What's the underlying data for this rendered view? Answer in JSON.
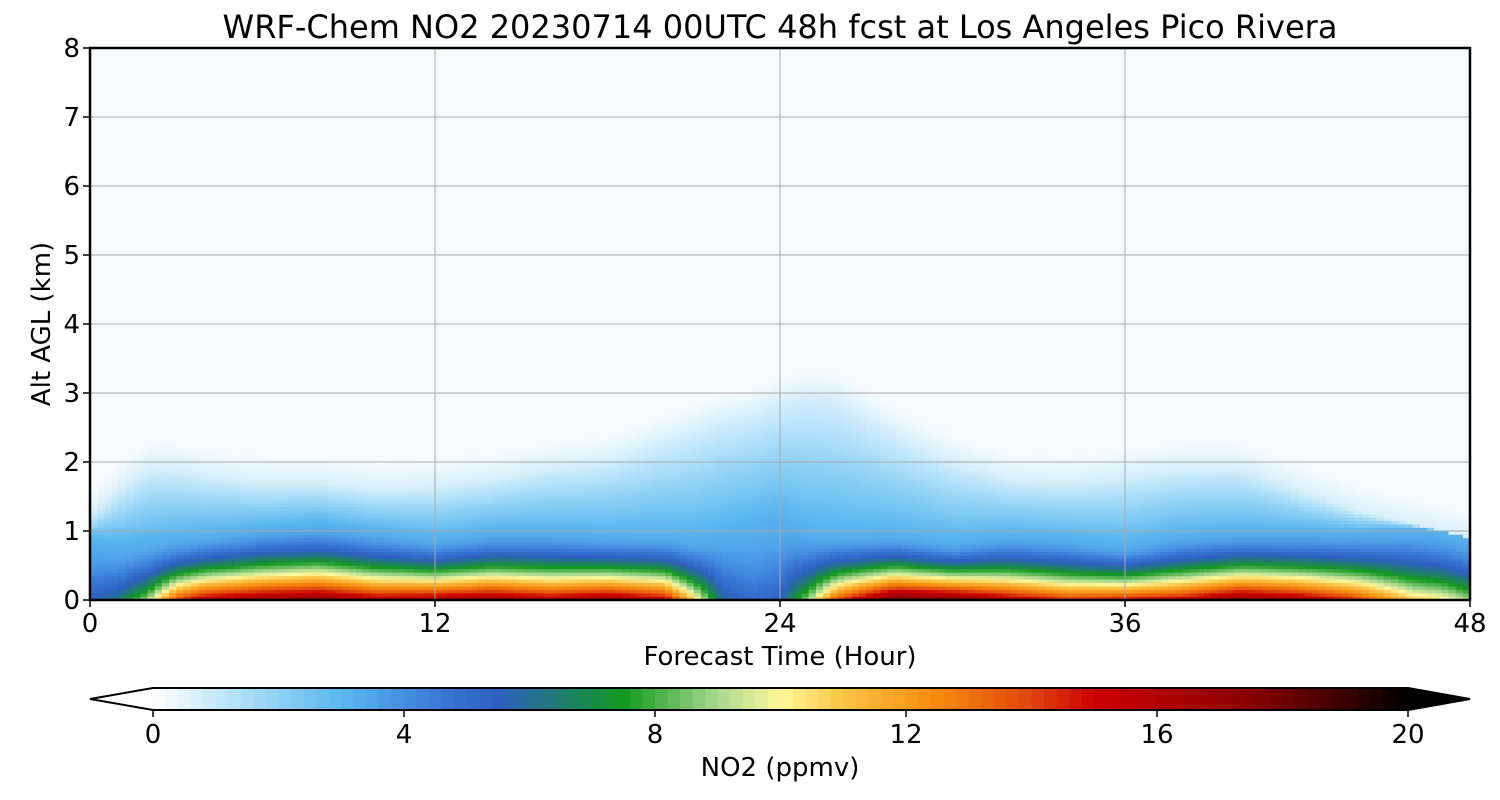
{
  "chart_data": {
    "type": "heatmap",
    "title": "WRF-Chem NO2  20230714 00UTC 48h fcst at Los Angeles Pico Rivera",
    "xlabel": "Forecast Time (Hour)",
    "ylabel": "Alt AGL (km)",
    "xlim": [
      0,
      48
    ],
    "ylim": [
      0,
      8
    ],
    "x_ticks": [
      0,
      12,
      24,
      36,
      48
    ],
    "y_ticks": [
      0,
      1,
      2,
      3,
      4,
      5,
      6,
      7,
      8
    ],
    "grid": true,
    "colorbar": {
      "label": "NO2  (ppmv)",
      "range": [
        0,
        20
      ],
      "ticks": [
        0,
        4,
        8,
        12,
        16,
        20
      ],
      "extend": "both",
      "orientation": "horizontal",
      "placement": "bottom",
      "colors": [
        {
          "v": 0,
          "c": "#ffffff"
        },
        {
          "v": 1.5,
          "c": "#a9ddf7"
        },
        {
          "v": 3,
          "c": "#5ab8f0"
        },
        {
          "v": 4.5,
          "c": "#3a7ad8"
        },
        {
          "v": 5.5,
          "c": "#2e5fc0"
        },
        {
          "v": 6.5,
          "c": "#1f7d70"
        },
        {
          "v": 7.5,
          "c": "#129a1e"
        },
        {
          "v": 9,
          "c": "#a8d890"
        },
        {
          "v": 10,
          "c": "#fff79a"
        },
        {
          "v": 11,
          "c": "#fcc445"
        },
        {
          "v": 12.5,
          "c": "#f68a0c"
        },
        {
          "v": 14,
          "c": "#e0450c"
        },
        {
          "v": 15,
          "c": "#cc0000"
        },
        {
          "v": 17.5,
          "c": "#8a0000"
        },
        {
          "v": 19,
          "c": "#3a0000"
        },
        {
          "v": 20,
          "c": "#000000"
        }
      ]
    },
    "field": {
      "hours": [
        0,
        1,
        2,
        3,
        4,
        6,
        8,
        10,
        12,
        14,
        16,
        18,
        20,
        21,
        22,
        23,
        24,
        25,
        26,
        28,
        30,
        32,
        34,
        36,
        38,
        40,
        42,
        44,
        46,
        47,
        48
      ],
      "surface_no2_ppmv": [
        5.5,
        6.5,
        9,
        14,
        16,
        17,
        17.5,
        16,
        16.5,
        17,
        16,
        17,
        15.5,
        11,
        6,
        5,
        5.5,
        9,
        14,
        18.5,
        18,
        16,
        14.5,
        15,
        15.5,
        17.5,
        16.5,
        14.5,
        11,
        10.5,
        9
      ],
      "polluted_layer_top_km": [
        0.9,
        0.8,
        0.85,
        0.9,
        0.95,
        1.05,
        1.1,
        1.0,
        0.9,
        1.0,
        1.0,
        0.95,
        0.95,
        0.9,
        1.0,
        1.1,
        1.2,
        1.0,
        0.95,
        0.95,
        0.85,
        0.95,
        0.9,
        0.8,
        0.95,
        1.0,
        1.0,
        1.0,
        1.05,
        1.0,
        0.9
      ],
      "faint_layer_top_km": [
        1.2,
        1.6,
        1.9,
        1.9,
        1.8,
        1.7,
        1.7,
        1.6,
        1.65,
        1.75,
        1.9,
        2.0,
        2.3,
        2.45,
        2.6,
        2.7,
        2.85,
        2.95,
        2.9,
        2.4,
        2.0,
        1.75,
        1.7,
        1.8,
        1.9,
        1.9,
        1.6,
        1.3,
        1.1,
        1.0,
        0.9
      ]
    }
  }
}
